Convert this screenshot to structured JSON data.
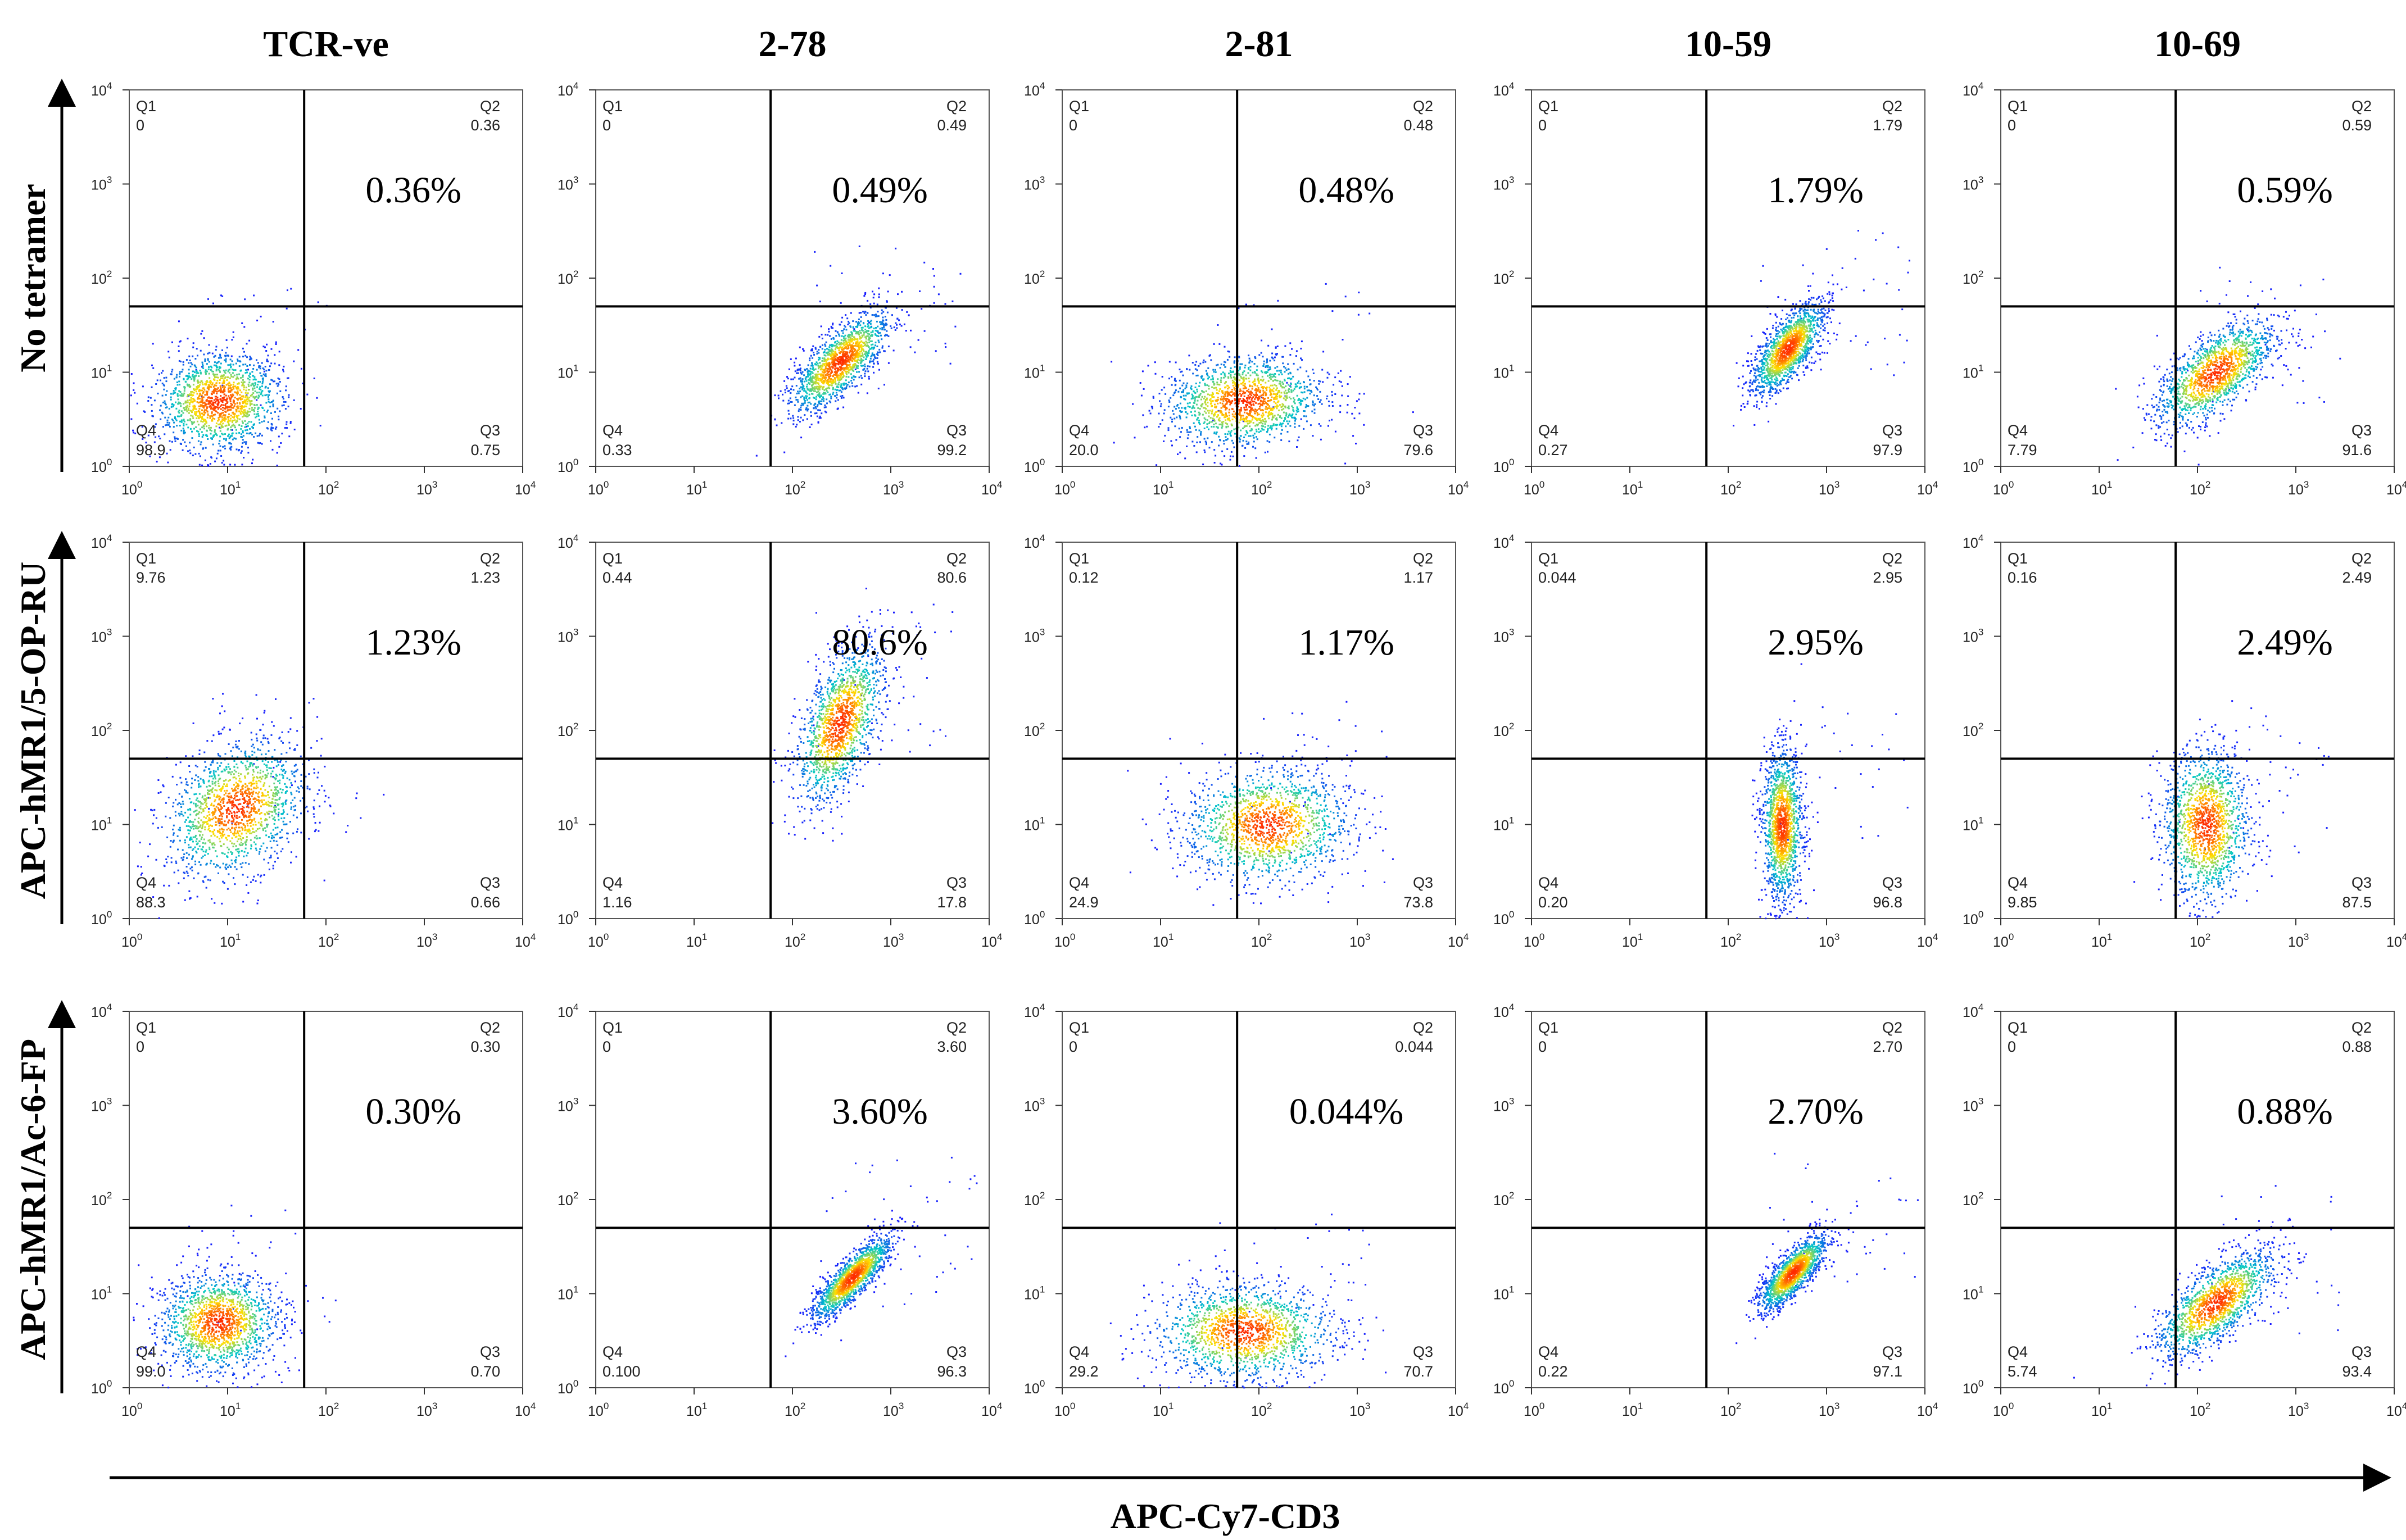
{
  "figure": {
    "x_axis_title": "APC-Cy7-CD3",
    "tick_base": "10",
    "tick_exponents": [
      "0",
      "1",
      "2",
      "3",
      "4"
    ],
    "colors": {
      "dot_low": "#1a1aff",
      "dot_mid": "#00c8c8",
      "dot_high": "#ffe000",
      "dot_peak": "#ff2a00",
      "line": "#000000"
    }
  },
  "chart_data": {
    "type": "scatter",
    "title": "",
    "xlabel": "APC-Cy7-CD3",
    "x_scale": "log",
    "y_scale": "log",
    "xlim": [
      1,
      10000
    ],
    "ylim": [
      1,
      10000
    ],
    "columns": [
      "TCR-ve",
      "2-78",
      "2-81",
      "10-59",
      "10-69"
    ],
    "rows": [
      "No tetramer",
      "APC-hMR1/5-OP-RU",
      "APC-hMR1/Ac-6-FP"
    ],
    "panels": [
      {
        "row": "No tetramer",
        "column": "TCR-ve",
        "gate_x": 60,
        "gate_y": 50,
        "q1": "0",
        "q2": "0.36",
        "q3": "0.75",
        "q4": "98.9",
        "q2_percent": "0.36%",
        "pop_x": 8,
        "pop_y": 5,
        "pop_sx": 0.32,
        "pop_sy": 0.26,
        "pop_r": 0.05
      },
      {
        "row": "No tetramer",
        "column": "2-78",
        "gate_x": 60,
        "gate_y": 50,
        "q1": "0",
        "q2": "0.49",
        "q3": "99.2",
        "q4": "0.33",
        "q2_percent": "0.49%",
        "pop_x": 300,
        "pop_y": 13,
        "pop_sx": 0.25,
        "pop_sy": 0.27,
        "pop_r": 0.75
      },
      {
        "row": "No tetramer",
        "column": "2-81",
        "gate_x": 60,
        "gate_y": 50,
        "q1": "0",
        "q2": "0.48",
        "q3": "79.6",
        "q4": "20.0",
        "q2_percent": "0.48%",
        "pop_x": 70,
        "pop_y": 5,
        "pop_sx": 0.4,
        "pop_sy": 0.24,
        "pop_r": 0.1
      },
      {
        "row": "No tetramer",
        "column": "10-59",
        "gate_x": 60,
        "gate_y": 50,
        "q1": "0",
        "q2": "1.79",
        "q3": "97.9",
        "q4": "0.27",
        "q2_percent": "1.79%",
        "pop_x": 400,
        "pop_y": 18,
        "pop_sx": 0.18,
        "pop_sy": 0.24,
        "pop_r": 0.7
      },
      {
        "row": "No tetramer",
        "column": "10-69",
        "gate_x": 60,
        "gate_y": 50,
        "q1": "0",
        "q2": "0.59",
        "q3": "91.6",
        "q4": "7.79",
        "q2_percent": "0.59%",
        "pop_x": 150,
        "pop_y": 10,
        "pop_sx": 0.3,
        "pop_sy": 0.28,
        "pop_r": 0.65
      },
      {
        "row": "APC-hMR1/5-OP-RU",
        "column": "TCR-ve",
        "gate_x": 60,
        "gate_y": 50,
        "q1": "9.76",
        "q2": "1.23",
        "q3": "0.66",
        "q4": "88.3",
        "q2_percent": "1.23%",
        "pop_x": 12,
        "pop_y": 15,
        "pop_sx": 0.35,
        "pop_sy": 0.36,
        "pop_r": 0.3
      },
      {
        "row": "APC-hMR1/5-OP-RU",
        "column": "2-78",
        "gate_x": 60,
        "gate_y": 50,
        "q1": "0.44",
        "q2": "80.6",
        "q3": "17.8",
        "q4": "1.16",
        "q2_percent": "80.6%",
        "pop_x": 300,
        "pop_y": 120,
        "pop_sx": 0.22,
        "pop_sy": 0.42,
        "pop_r": 0.55
      },
      {
        "row": "APC-hMR1/5-OP-RU",
        "column": "2-81",
        "gate_x": 60,
        "gate_y": 50,
        "q1": "0.12",
        "q2": "1.17",
        "q3": "73.8",
        "q4": "24.9",
        "q2_percent": "1.17%",
        "pop_x": 120,
        "pop_y": 10,
        "pop_sx": 0.42,
        "pop_sy": 0.3,
        "pop_r": 0.05
      },
      {
        "row": "APC-hMR1/5-OP-RU",
        "column": "10-59",
        "gate_x": 60,
        "gate_y": 50,
        "q1": "0.044",
        "q2": "2.95",
        "q3": "96.8",
        "q4": "0.20",
        "q2_percent": "2.95%",
        "pop_x": 350,
        "pop_y": 10,
        "pop_sx": 0.1,
        "pop_sy": 0.4,
        "pop_r": 0.0
      },
      {
        "row": "APC-hMR1/5-OP-RU",
        "column": "10-69",
        "gate_x": 60,
        "gate_y": 50,
        "q1": "0.16",
        "q2": "2.49",
        "q3": "87.5",
        "q4": "9.85",
        "q2_percent": "2.49%",
        "pop_x": 120,
        "pop_y": 10,
        "pop_sx": 0.22,
        "pop_sy": 0.4,
        "pop_r": 0.0
      },
      {
        "row": "APC-hMR1/Ac-6-FP",
        "column": "TCR-ve",
        "gate_x": 60,
        "gate_y": 50,
        "q1": "0",
        "q2": "0.30",
        "q3": "0.70",
        "q4": "99.0",
        "q2_percent": "0.30%",
        "pop_x": 8,
        "pop_y": 5,
        "pop_sx": 0.3,
        "pop_sy": 0.26,
        "pop_r": 0.05
      },
      {
        "row": "APC-hMR1/Ac-6-FP",
        "column": "2-78",
        "gate_x": 60,
        "gate_y": 50,
        "q1": "0",
        "q2": "3.60",
        "q3": "96.3",
        "q4": "0.100",
        "q2_percent": "3.60%",
        "pop_x": 400,
        "pop_y": 15,
        "pop_sx": 0.2,
        "pop_sy": 0.22,
        "pop_r": 0.85
      },
      {
        "row": "APC-hMR1/Ac-6-FP",
        "column": "2-81",
        "gate_x": 60,
        "gate_y": 50,
        "q1": "0",
        "q2": "0.044",
        "q3": "70.7",
        "q4": "29.2",
        "q2_percent": "0.044%",
        "pop_x": 70,
        "pop_y": 4,
        "pop_sx": 0.45,
        "pop_sy": 0.25,
        "pop_r": 0.0
      },
      {
        "row": "APC-hMR1/Ac-6-FP",
        "column": "10-59",
        "gate_x": 60,
        "gate_y": 50,
        "q1": "0",
        "q2": "2.70",
        "q3": "97.1",
        "q4": "0.22",
        "q2_percent": "2.70%",
        "pop_x": 450,
        "pop_y": 17,
        "pop_sx": 0.17,
        "pop_sy": 0.2,
        "pop_r": 0.8
      },
      {
        "row": "APC-hMR1/Ac-6-FP",
        "column": "10-69",
        "gate_x": 60,
        "gate_y": 50,
        "q1": "0",
        "q2": "0.88",
        "q3": "93.4",
        "q4": "5.74",
        "q2_percent": "0.88%",
        "pop_x": 150,
        "pop_y": 8,
        "pop_sx": 0.3,
        "pop_sy": 0.28,
        "pop_r": 0.7
      }
    ]
  }
}
